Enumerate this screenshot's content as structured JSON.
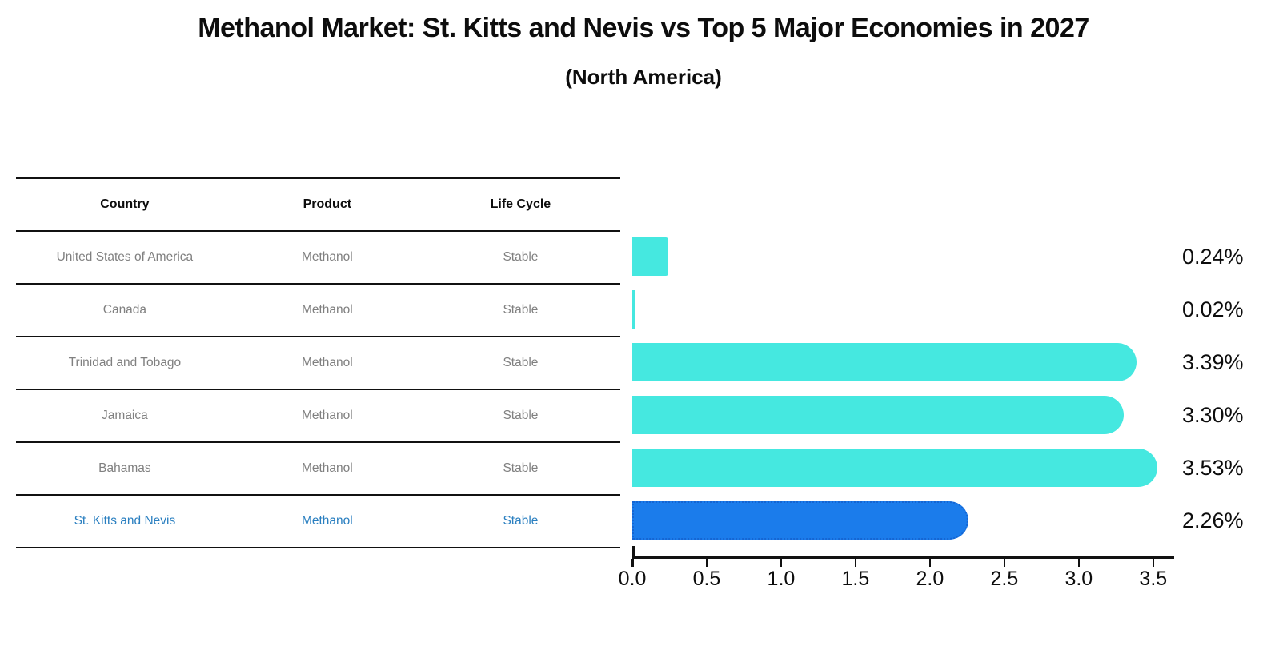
{
  "title": "Methanol Market: St. Kitts and Nevis vs Top 5 Major Economies in 2027",
  "subtitle": "(North America)",
  "table": {
    "headers": [
      "Country",
      "Product",
      "Life Cycle"
    ],
    "rows": [
      {
        "country": "United States of America",
        "product": "Methanol",
        "life_cycle": "Stable",
        "highlighted": false
      },
      {
        "country": "Canada",
        "product": "Methanol",
        "life_cycle": "Stable",
        "highlighted": false
      },
      {
        "country": "Trinidad and Tobago",
        "product": "Methanol",
        "life_cycle": "Stable",
        "highlighted": false
      },
      {
        "country": "Jamaica",
        "product": "Methanol",
        "life_cycle": "Stable",
        "highlighted": false
      },
      {
        "country": "Bahamas",
        "product": "Methanol",
        "life_cycle": "Stable",
        "highlighted": false
      },
      {
        "country": "St. Kitts and Nevis",
        "product": "Methanol",
        "life_cycle": "Stable",
        "highlighted": true
      }
    ]
  },
  "chart_data": {
    "type": "bar",
    "orientation": "horizontal",
    "categories": [
      "United States of America",
      "Canada",
      "Trinidad and Tobago",
      "Jamaica",
      "Bahamas",
      "St. Kitts and Nevis"
    ],
    "values": [
      0.24,
      0.02,
      3.39,
      3.3,
      3.53,
      2.26
    ],
    "value_labels": [
      "0.24%",
      "0.02%",
      "3.39%",
      "3.30%",
      "3.53%",
      "2.26%"
    ],
    "xlim": [
      0,
      3.63
    ],
    "x_ticks": [
      0.0,
      0.5,
      1.0,
      1.5,
      2.0,
      2.5,
      3.0,
      3.5
    ],
    "x_tick_labels": [
      "0.0",
      "0.5",
      "1.0",
      "1.5",
      "2.0",
      "2.5",
      "3.0",
      "3.5"
    ],
    "grid": false,
    "legend": false,
    "bar_color": "#45e8e0",
    "highlight_color": "#1b7ceb",
    "highlight_border_color": "#1565d2",
    "highlight_index": 5,
    "title": "Methanol Market: St. Kitts and Nevis vs Top 5 Major Economies in 2027",
    "subtitle": "(North America)",
    "xlabel": "",
    "ylabel": ""
  }
}
